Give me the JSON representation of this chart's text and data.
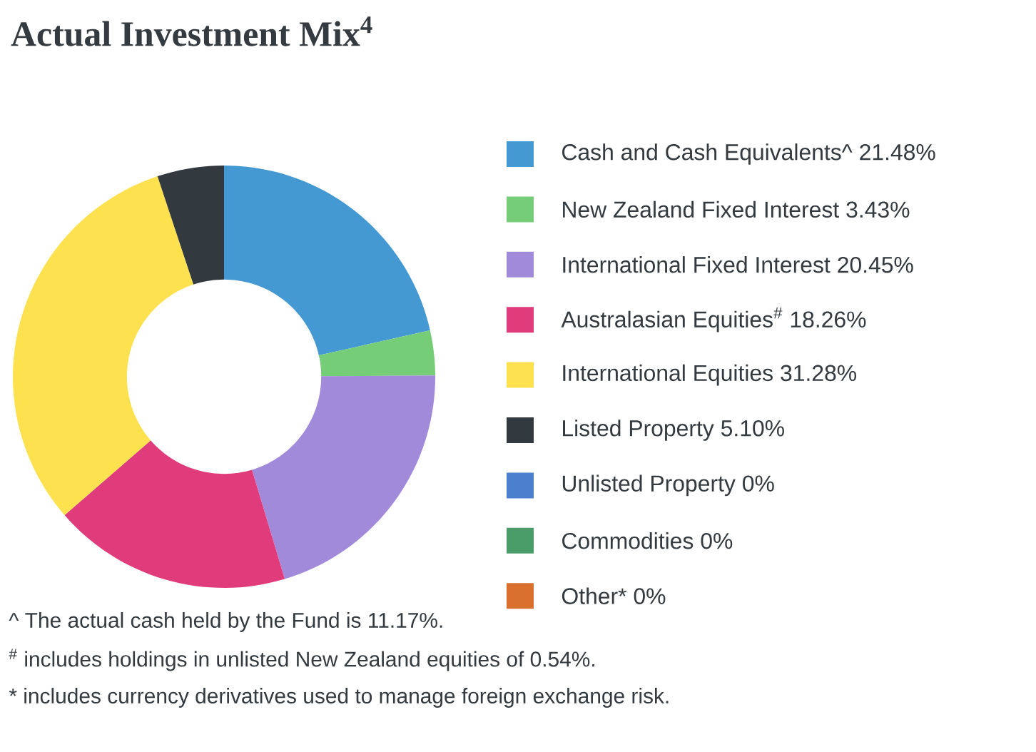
{
  "chart_data": {
    "type": "donut",
    "title": "Actual Investment Mix$^{4}$",
    "categories": [
      "Cash and Cash Equivalents^",
      "New Zealand Fixed Interest",
      "International Fixed Interest",
      "Australasian Equities$^{#}$",
      "International Equities",
      "Listed Property",
      "Unlisted Property",
      "Commodities",
      "Other*"
    ],
    "values": [
      21.48,
      3.43,
      20.45,
      18.26,
      31.28,
      5.1,
      0,
      0,
      0
    ],
    "value_labels": [
      "21.48%",
      "3.43%",
      "20.45%",
      "18.26%",
      "31.28%",
      "5.10%",
      "0%",
      "0%",
      "0%"
    ],
    "colors": [
      "#4599d3",
      "#76cd77",
      "#a08ad9",
      "#e03c7c",
      "#fde14f",
      "#323a40",
      "#4a80cc",
      "#4a9c68",
      "#d97030"
    ],
    "legend": "right",
    "annotations": [
      "^ The actual cash held by the Fund is 11.17%.",
      "$^{#}$ includes holdings in unlisted New Zealand equities of 0.54%.",
      "* includes currency derivatives used to manage foreign exchange risk."
    ]
  }
}
